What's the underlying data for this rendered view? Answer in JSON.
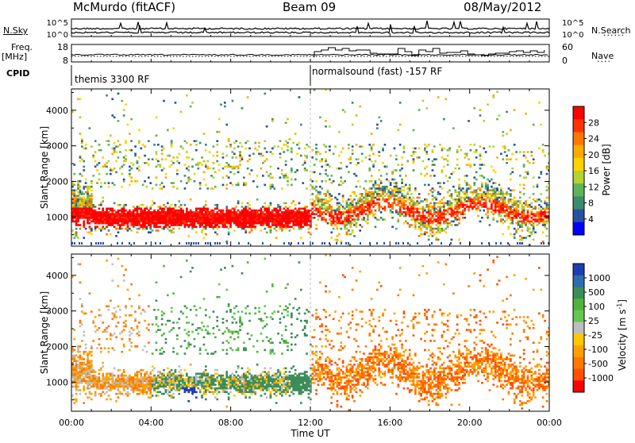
{
  "header": {
    "station": "McMurdo (fitACF)",
    "beam": "Beam 09",
    "date": "08/May/2012"
  },
  "side_labels": {
    "n_sky": "N.Sky",
    "n_search": "N.Search",
    "freq": "Freq.",
    "freq_unit": "[MHz]",
    "nave": "Nave",
    "cpid": "CPID"
  },
  "cpid_labels": {
    "first": "themis 3300 RF",
    "second": "normalsound (fast) -157 RF"
  },
  "chart_data": [
    {
      "type": "line",
      "name": "noise-panel",
      "y_left_ticks": [
        "10^5",
        "10^0"
      ],
      "y_right_ticks": [
        "10^5",
        "10^0"
      ],
      "xlim": [
        0,
        24
      ]
    },
    {
      "type": "line",
      "name": "freq-nave-panel",
      "y_left_ticks": [
        "18",
        "8"
      ],
      "y_right_ticks": [
        "60",
        "0"
      ],
      "xlim": [
        0,
        24
      ]
    },
    {
      "type": "heatmap",
      "name": "power",
      "ylabel": "Slant Range [km]",
      "yticks": [
        1000,
        2000,
        3000,
        4000
      ],
      "ylim": [
        180,
        4600
      ],
      "xlim": [
        0,
        24
      ],
      "colorbar": {
        "label": "Power [dB]",
        "ticks": [
          "28",
          "24",
          "20",
          "16",
          "12",
          "8",
          "4"
        ],
        "colors": [
          "#ff0000",
          "#ff3300",
          "#ff7700",
          "#ffaa00",
          "#ffd200",
          "#b4d232",
          "#5fb45a",
          "#3c8c6e",
          "#2850a0",
          "#0000ff"
        ]
      }
    },
    {
      "type": "heatmap",
      "name": "velocity",
      "ylabel": "Slant Range [km]",
      "yticks": [
        1000,
        2000,
        3000,
        4000
      ],
      "ylim": [
        180,
        4600
      ],
      "xlim": [
        0,
        24
      ],
      "xlabel": "Time UT",
      "xticks": [
        "00:00",
        "04:00",
        "08:00",
        "12:00",
        "16:00",
        "20:00",
        "00:00"
      ],
      "colorbar": {
        "label": "Velocity [m s",
        "label_sup": "-1",
        "label_end": "]",
        "ticks": [
          "1000",
          "500",
          "100",
          "25",
          "-25",
          "-100",
          "-500",
          "-1000"
        ],
        "colors": [
          "#1e3cb4",
          "#2d6eaa",
          "#3c8c5a",
          "#50b43c",
          "#64c850",
          "#bebebe",
          "#ffc800",
          "#ffa000",
          "#ff7800",
          "#ff5000",
          "#ff0000"
        ]
      }
    }
  ]
}
